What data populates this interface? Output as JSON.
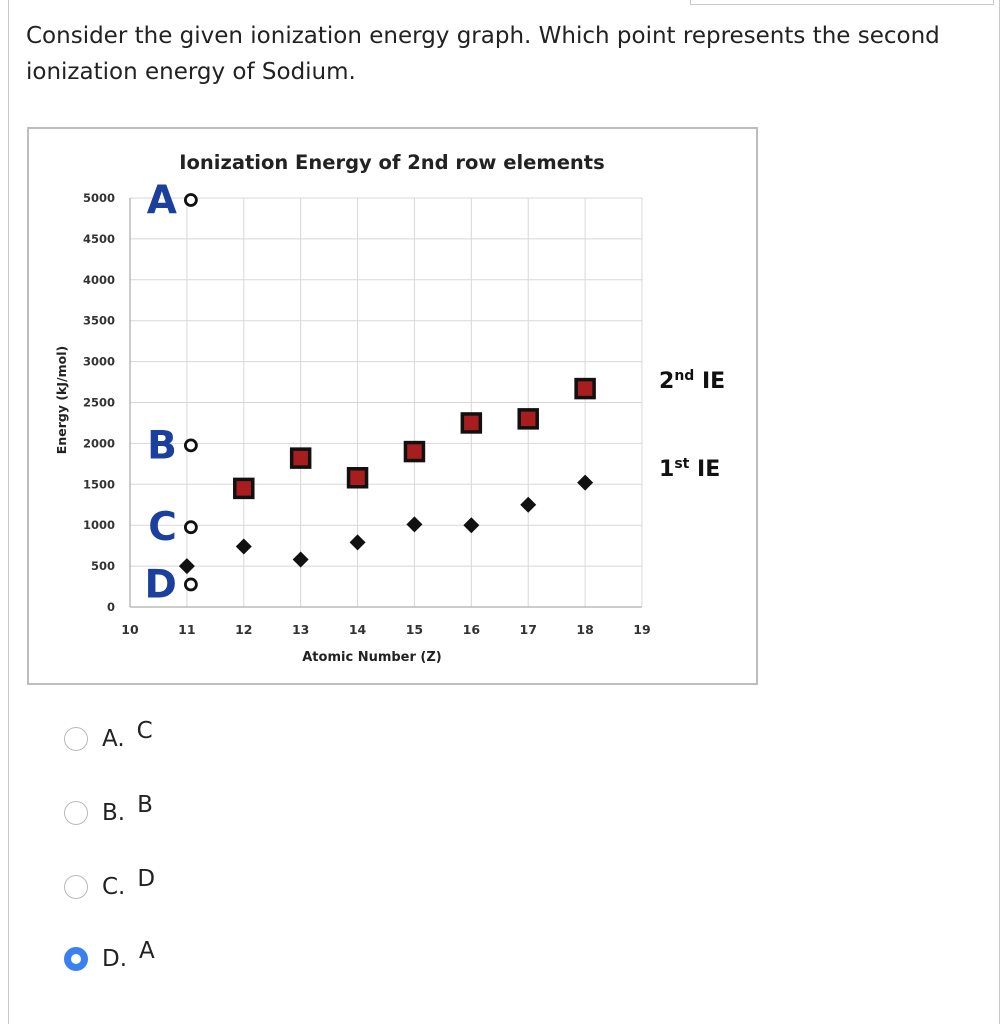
{
  "question": {
    "text_line1": "Consider the given ionization energy graph. Which point represents the second",
    "text_line2": "ionization energy of Sodium."
  },
  "chart_data": {
    "type": "scatter",
    "title": "Ionization Energy of 2nd row elements",
    "xlabel": "Atomic Number (Z)",
    "ylabel": "Energy (kJ/mol)",
    "xlim": [
      10,
      19
    ],
    "ylim": [
      0,
      5000
    ],
    "x_ticks": [
      10,
      11,
      12,
      13,
      14,
      15,
      16,
      17,
      18,
      19
    ],
    "y_ticks": [
      0,
      500,
      1000,
      1500,
      2000,
      2500,
      3000,
      3500,
      4000,
      4500,
      5000
    ],
    "grid": true,
    "series": [
      {
        "name": "2nd IE",
        "marker": "square",
        "color": "#111111",
        "fill": "#a81d1d",
        "x": [
          12,
          13,
          14,
          15,
          16,
          17,
          18
        ],
        "y": [
          1450,
          1820,
          1580,
          1900,
          2250,
          2300,
          2670
        ]
      },
      {
        "name": "1st IE",
        "marker": "diamond",
        "color": "#111111",
        "x": [
          11,
          12,
          13,
          14,
          15,
          16,
          17,
          18
        ],
        "y": [
          500,
          740,
          580,
          790,
          1010,
          1000,
          1250,
          1520
        ]
      }
    ],
    "candidate_points": [
      {
        "label": "A",
        "x": 11,
        "y": 5000
      },
      {
        "label": "B",
        "x": 11,
        "y": 2000
      },
      {
        "label": "C",
        "x": 11,
        "y": 1000
      },
      {
        "label": "D",
        "x": 11,
        "y": 300
      }
    ],
    "legend_labels": [
      {
        "base": "2nd",
        "sup": "nd",
        "text": "IE"
      },
      {
        "base": "1st",
        "sup": "st",
        "text": "IE"
      }
    ]
  },
  "options": [
    {
      "letter": "A.",
      "text": "C",
      "selected": false
    },
    {
      "letter": "B.",
      "text": "B",
      "selected": false
    },
    {
      "letter": "C.",
      "text": "D",
      "selected": false
    },
    {
      "letter": "D.",
      "text": "A",
      "selected": true
    }
  ],
  "colors": {
    "candidate_label": "#1b3f9c",
    "radio_selected": "#3b80f0",
    "grid": "#d8d8d8"
  }
}
